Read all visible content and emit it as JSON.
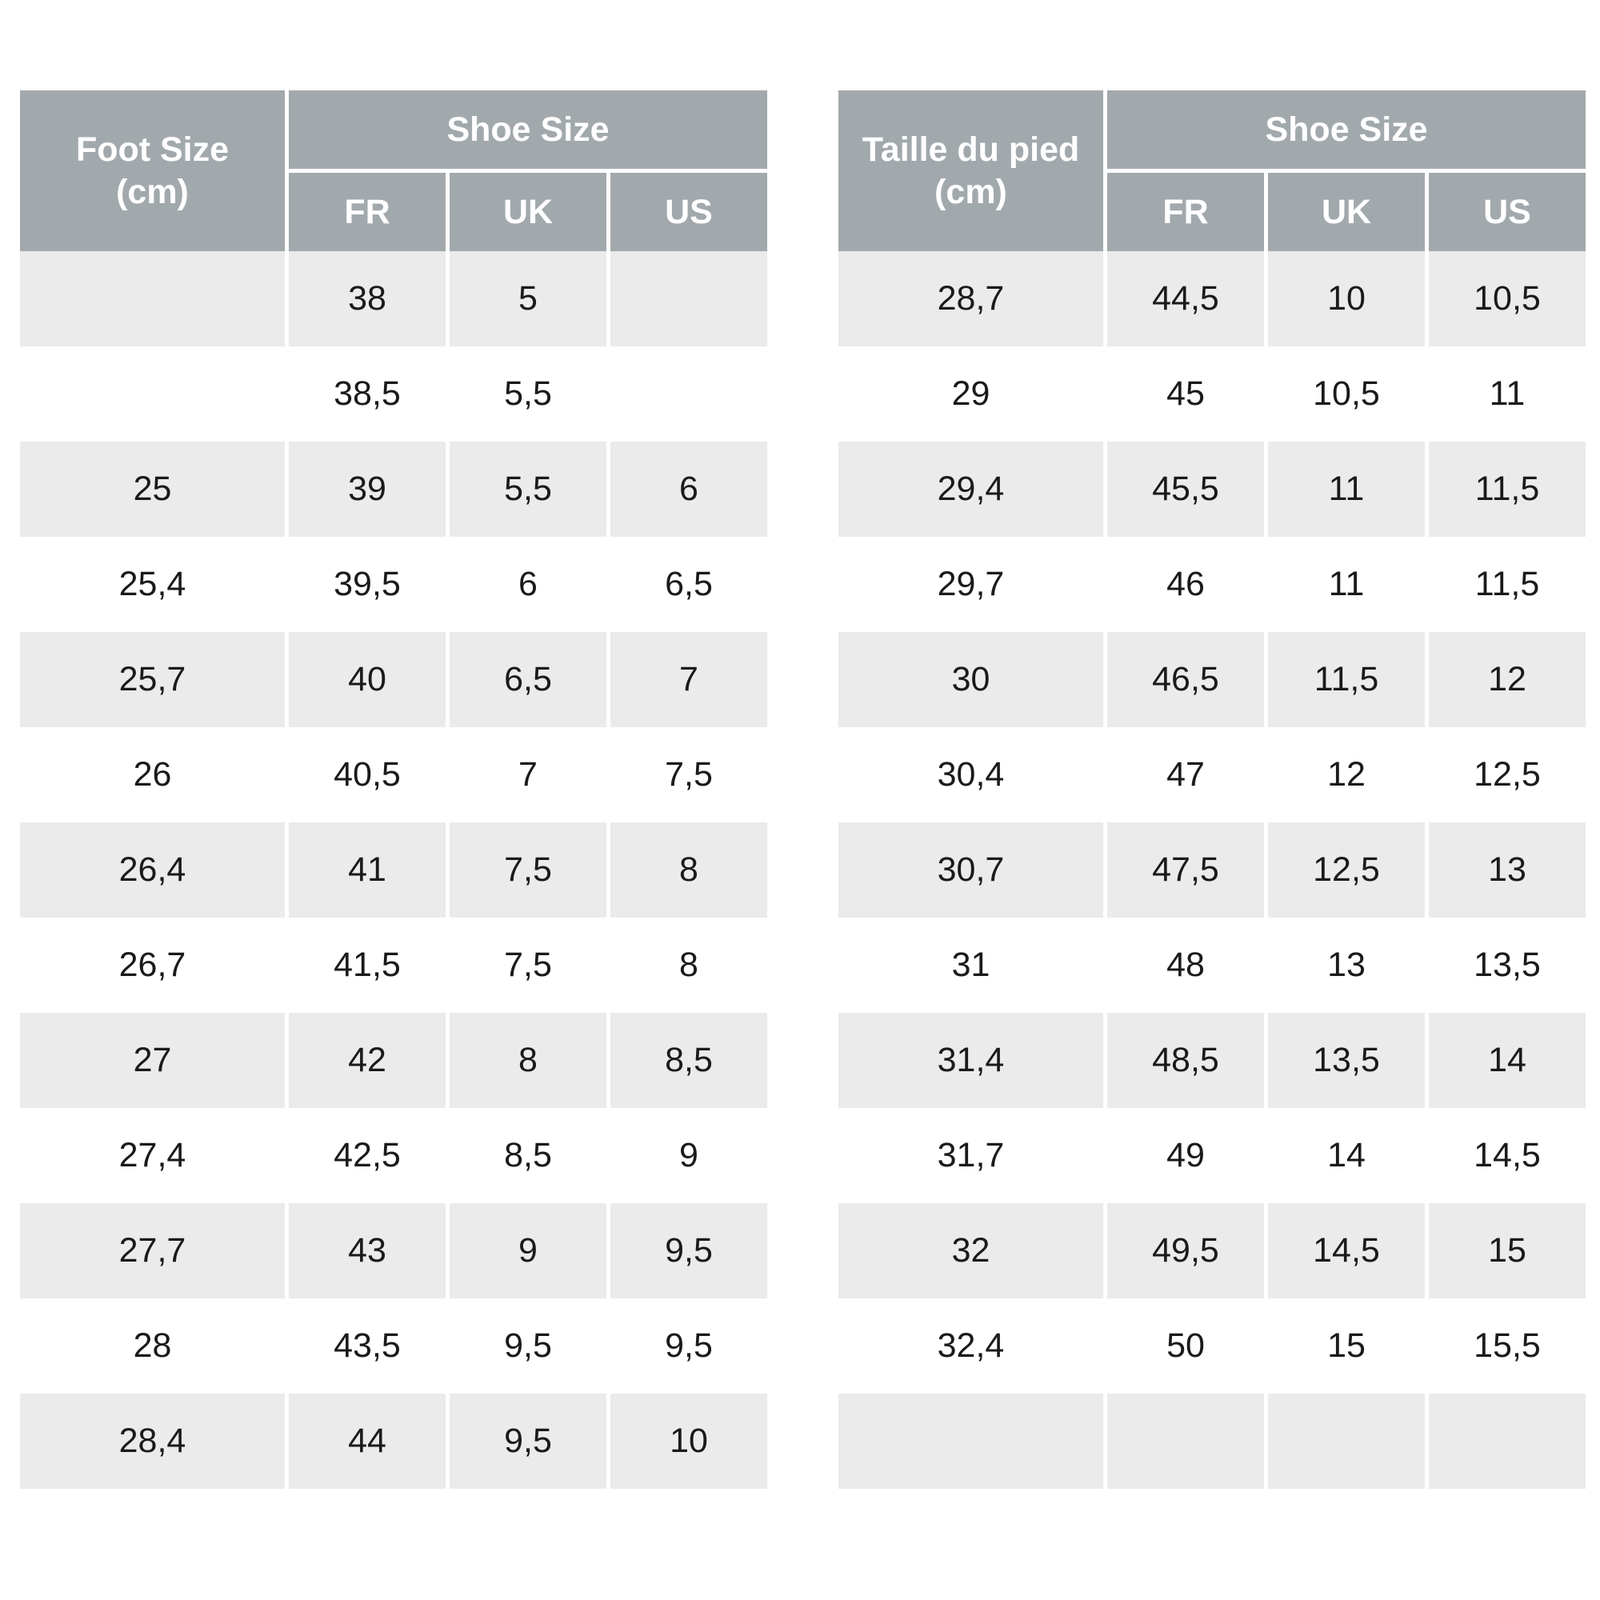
{
  "left_table": {
    "foot_header": "Foot Size\n(cm)",
    "group_header": "Shoe Size",
    "columns": [
      "FR",
      "UK",
      "US"
    ],
    "rows": [
      {
        "foot": "",
        "fr": "38",
        "uk": "5",
        "us": ""
      },
      {
        "foot": "",
        "fr": "38,5",
        "uk": "5,5",
        "us": ""
      },
      {
        "foot": "25",
        "fr": "39",
        "uk": "5,5",
        "us": "6"
      },
      {
        "foot": "25,4",
        "fr": "39,5",
        "uk": "6",
        "us": "6,5"
      },
      {
        "foot": "25,7",
        "fr": "40",
        "uk": "6,5",
        "us": "7"
      },
      {
        "foot": "26",
        "fr": "40,5",
        "uk": "7",
        "us": "7,5"
      },
      {
        "foot": "26,4",
        "fr": "41",
        "uk": "7,5",
        "us": "8"
      },
      {
        "foot": "26,7",
        "fr": "41,5",
        "uk": "7,5",
        "us": "8"
      },
      {
        "foot": "27",
        "fr": "42",
        "uk": "8",
        "us": "8,5"
      },
      {
        "foot": "27,4",
        "fr": "42,5",
        "uk": "8,5",
        "us": "9"
      },
      {
        "foot": "27,7",
        "fr": "43",
        "uk": "9",
        "us": "9,5"
      },
      {
        "foot": "28",
        "fr": "43,5",
        "uk": "9,5",
        "us": "9,5"
      },
      {
        "foot": "28,4",
        "fr": "44",
        "uk": "9,5",
        "us": "10"
      }
    ]
  },
  "right_table": {
    "foot_header": "Taille du pied\n(cm)",
    "group_header": "Shoe Size",
    "columns": [
      "FR",
      "UK",
      "US"
    ],
    "rows": [
      {
        "foot": "28,7",
        "fr": "44,5",
        "uk": "10",
        "us": "10,5"
      },
      {
        "foot": "29",
        "fr": "45",
        "uk": "10,5",
        "us": "11"
      },
      {
        "foot": "29,4",
        "fr": "45,5",
        "uk": "11",
        "us": "11,5"
      },
      {
        "foot": "29,7",
        "fr": "46",
        "uk": "11",
        "us": "11,5"
      },
      {
        "foot": "30",
        "fr": "46,5",
        "uk": "11,5",
        "us": "12"
      },
      {
        "foot": "30,4",
        "fr": "47",
        "uk": "12",
        "us": "12,5"
      },
      {
        "foot": "30,7",
        "fr": "47,5",
        "uk": "12,5",
        "us": "13"
      },
      {
        "foot": "31",
        "fr": "48",
        "uk": "13",
        "us": "13,5"
      },
      {
        "foot": "31,4",
        "fr": "48,5",
        "uk": "13,5",
        "us": "14"
      },
      {
        "foot": "31,7",
        "fr": "49",
        "uk": "14",
        "us": "14,5"
      },
      {
        "foot": "32",
        "fr": "49,5",
        "uk": "14,5",
        "us": "15"
      },
      {
        "foot": "32,4",
        "fr": "50",
        "uk": "15",
        "us": "15,5"
      },
      {
        "foot": "",
        "fr": "",
        "uk": "",
        "us": ""
      }
    ]
  },
  "colors": {
    "header_bg": "#a2a9ad",
    "header_text": "#ffffff",
    "shaded_row": "#ebebeb",
    "body_text": "#1a1a1a"
  }
}
